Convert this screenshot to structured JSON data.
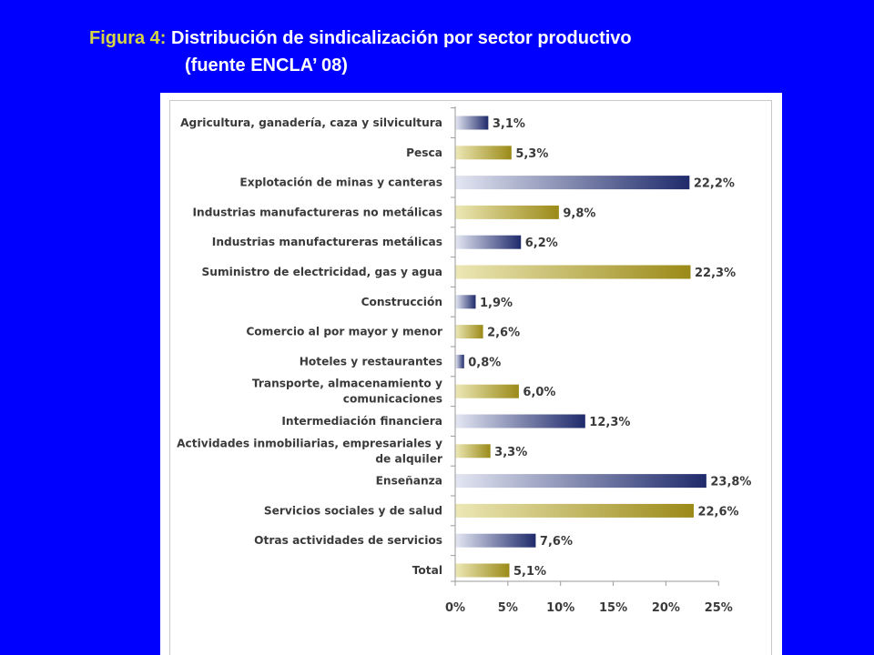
{
  "figure": {
    "label": "Figura 4:",
    "title_line1": "Distribución de sindicalización por sector productivo",
    "title_line2": "(fuente ENCLA’ 08)"
  },
  "colors": {
    "background": "#0000ff",
    "label_yellow": "#d6d645",
    "bar_dark": "#1f2a6b",
    "bar_dark_light": "#e3e6f2",
    "bar_gold": "#9b8a18",
    "bar_gold_light": "#ece7b5"
  },
  "chart_data": {
    "type": "bar",
    "orientation": "horizontal",
    "categories": [
      "Agricultura, ganadería, caza y silvicultura",
      "Pesca",
      "Explotación de minas y canteras",
      "Industrias manufactureras no metálicas",
      "Industrias manufactureras metálicas",
      "Suministro de electricidad, gas y agua",
      "Construcción",
      "Comercio al por mayor y menor",
      "Hoteles y restaurantes",
      "Transporte, almacenamiento y comunicaciones",
      "Intermediación financiera",
      "Actividades inmobiliarias, empresariales y de alquiler",
      "Enseñanza",
      "Servicios sociales y de salud",
      "Otras actividades de servicios",
      "Total"
    ],
    "category_lines": [
      [
        "Agricultura, ganadería, caza y silvicultura"
      ],
      [
        "Pesca"
      ],
      [
        "Explotación de minas y canteras"
      ],
      [
        "Industrias manufactureras no metálicas"
      ],
      [
        "Industrias manufactureras metálicas"
      ],
      [
        "Suministro de electricidad, gas y agua"
      ],
      [
        "Construcción"
      ],
      [
        "Comercio al por mayor y menor"
      ],
      [
        "Hoteles y restaurantes"
      ],
      [
        "Transporte, almacenamiento y",
        "comunicaciones"
      ],
      [
        "Intermediación financiera"
      ],
      [
        "Actividades inmobiliarias, empresariales y",
        "de alquiler"
      ],
      [
        "Enseñanza"
      ],
      [
        "Servicios sociales y de salud"
      ],
      [
        "Otras actividades de servicios"
      ],
      [
        "Total"
      ]
    ],
    "values": [
      3.1,
      5.3,
      22.2,
      9.8,
      6.2,
      22.3,
      1.9,
      2.6,
      0.8,
      6.0,
      12.3,
      3.3,
      23.8,
      22.6,
      7.6,
      5.1
    ],
    "value_labels": [
      "3,1%",
      "5,3%",
      "22,2%",
      "9,8%",
      "6,2%",
      "22,3%",
      "1,9%",
      "2,6%",
      "0,8%",
      "6,0%",
      "12,3%",
      "3,3%",
      "23,8%",
      "22,6%",
      "7,6%",
      "5,1%"
    ],
    "bar_styles": [
      "dark",
      "gold",
      "dark",
      "gold",
      "dark",
      "gold",
      "dark",
      "gold",
      "dark",
      "gold",
      "dark",
      "gold",
      "dark",
      "gold",
      "dark",
      "gold"
    ],
    "x_ticks": [
      0,
      5,
      10,
      15,
      20,
      25
    ],
    "x_tick_labels": [
      "0%",
      "5%",
      "10%",
      "15%",
      "20%",
      "25%"
    ],
    "xlim": [
      0,
      25
    ],
    "grid": false,
    "legend": "none"
  }
}
